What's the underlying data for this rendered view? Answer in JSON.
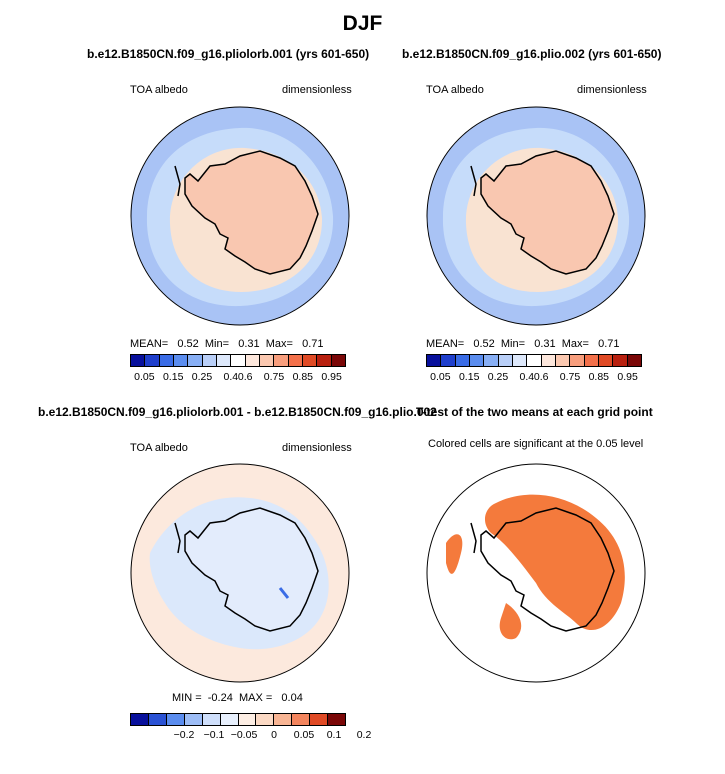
{
  "title": "DJF",
  "panels": [
    {
      "title": "b.e12.B1850CN.f09_g16.pliolorb.001 (yrs 601-650)",
      "left_label": "TOA albedo",
      "right_label": "dimensionless",
      "stats": "MEAN=   0.52  Min=   0.31  Max=   0.71"
    },
    {
      "title": "b.e12.B1850CN.f09_g16.plio.002 (yrs 601-650)",
      "left_label": "TOA albedo",
      "right_label": "dimensionless",
      "stats": "MEAN=   0.52  Min=   0.31  Max=   0.71"
    },
    {
      "title": "b.e12.B1850CN.f09_g16.pliolorb.001 - b.e12.B1850CN.f09_g16.plio.002",
      "left_label": "TOA albedo",
      "right_label": "dimensionless",
      "stats": "MIN =  -0.24  MAX =   0.04"
    },
    {
      "title": "T-test of the two means at each grid point",
      "subtitle": "Colored cells are significant at the 0.05 level"
    }
  ],
  "colorbars": {
    "albedo": {
      "ticks": [
        "0.05",
        "0.15",
        "0.25",
        "0.4",
        "0.6",
        "0.75",
        "0.85",
        "0.95"
      ],
      "colors": [
        "#08109c",
        "#1f3fcc",
        "#3a6ce6",
        "#5b8def",
        "#88aff5",
        "#b9cff8",
        "#dde8fb",
        "#ffffff",
        "#fde7dc",
        "#fbc8b0",
        "#f89e7d",
        "#f3704a",
        "#e04a25",
        "#b8200f",
        "#7a0707"
      ]
    },
    "diff": {
      "ticks": [
        "−0.2",
        "−0.1",
        "−0.05",
        "0",
        "0.05",
        "0.1",
        "0.2"
      ],
      "colors": [
        "#08109c",
        "#2a52d4",
        "#5b8def",
        "#9dbdf6",
        "#cfdffb",
        "#e8f0fd",
        "#fdeee4",
        "#fbd9c4",
        "#f8b594",
        "#f3855e",
        "#e04a25",
        "#7a0707"
      ]
    }
  }
}
